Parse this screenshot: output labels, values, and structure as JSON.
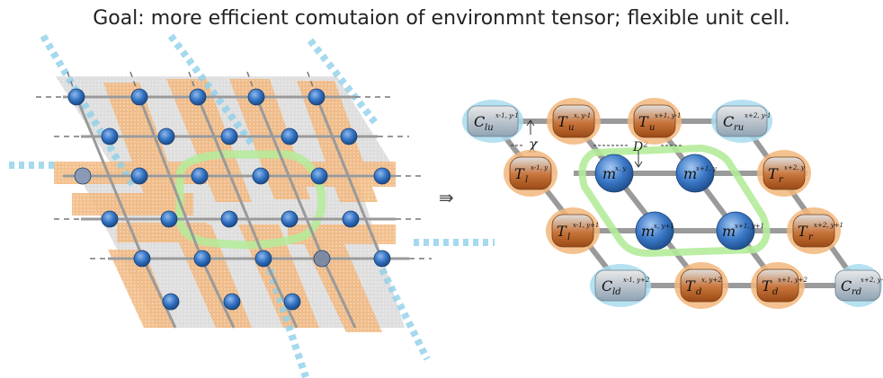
{
  "caption": "Goal: more efficient comutaion of environmnt tensor; flexible unit cell.",
  "arrow_symbol": "⇛",
  "annotations": {
    "chi": "χ",
    "d2": "D²"
  },
  "colors": {
    "node": "#2f6fbf",
    "edge": "#9a9a9a",
    "grey_panel": "#d9d9d9",
    "orange_band": "#f2b77c",
    "blue_band": "#a9dcef",
    "green_loop": "#b4ec9a",
    "corner_fill": "#b8c7d3",
    "edge_fill": "#c8743a"
  },
  "corners": [
    {
      "id": "C-lu",
      "text": "C",
      "sub": "lu",
      "supsub": "x-1, y-1"
    },
    {
      "id": "C-ru",
      "text": "C",
      "sub": "ru",
      "supsub": "x+2, y-1"
    },
    {
      "id": "C-ld",
      "text": "C",
      "sub": "ld",
      "supsub": "x-1, y+2"
    },
    {
      "id": "C-rd",
      "text": "C",
      "sub": "rd",
      "supsub": "x+2, y+2"
    }
  ],
  "edges": [
    {
      "id": "T-u-1",
      "text": "T",
      "sub": "u",
      "supsub": "x, y-1"
    },
    {
      "id": "T-u-2",
      "text": "T",
      "sub": "u",
      "supsub": "x+1, y-1"
    },
    {
      "id": "T-l-1",
      "text": "T",
      "sub": "l",
      "supsub": "x-1, y"
    },
    {
      "id": "T-r-1",
      "text": "T",
      "sub": "r",
      "supsub": "x+2, y"
    },
    {
      "id": "T-l-2",
      "text": "T",
      "sub": "l",
      "supsub": "x-1, y+1"
    },
    {
      "id": "T-r-2",
      "text": "T",
      "sub": "r",
      "supsub": "x+2, y+1"
    },
    {
      "id": "T-d-1",
      "text": "T",
      "sub": "d",
      "supsub": "x, y+2"
    },
    {
      "id": "T-d-2",
      "text": "T",
      "sub": "d",
      "supsub": "x+1, y+2"
    }
  ],
  "centers": [
    {
      "id": "m-1",
      "text": "m",
      "supsub": "x, y"
    },
    {
      "id": "m-2",
      "text": "m",
      "supsub": "x+1, y"
    },
    {
      "id": "m-3",
      "text": "m",
      "supsub": "x, y+1"
    },
    {
      "id": "m-4",
      "text": "m",
      "supsub": "x+1, y+1"
    }
  ]
}
